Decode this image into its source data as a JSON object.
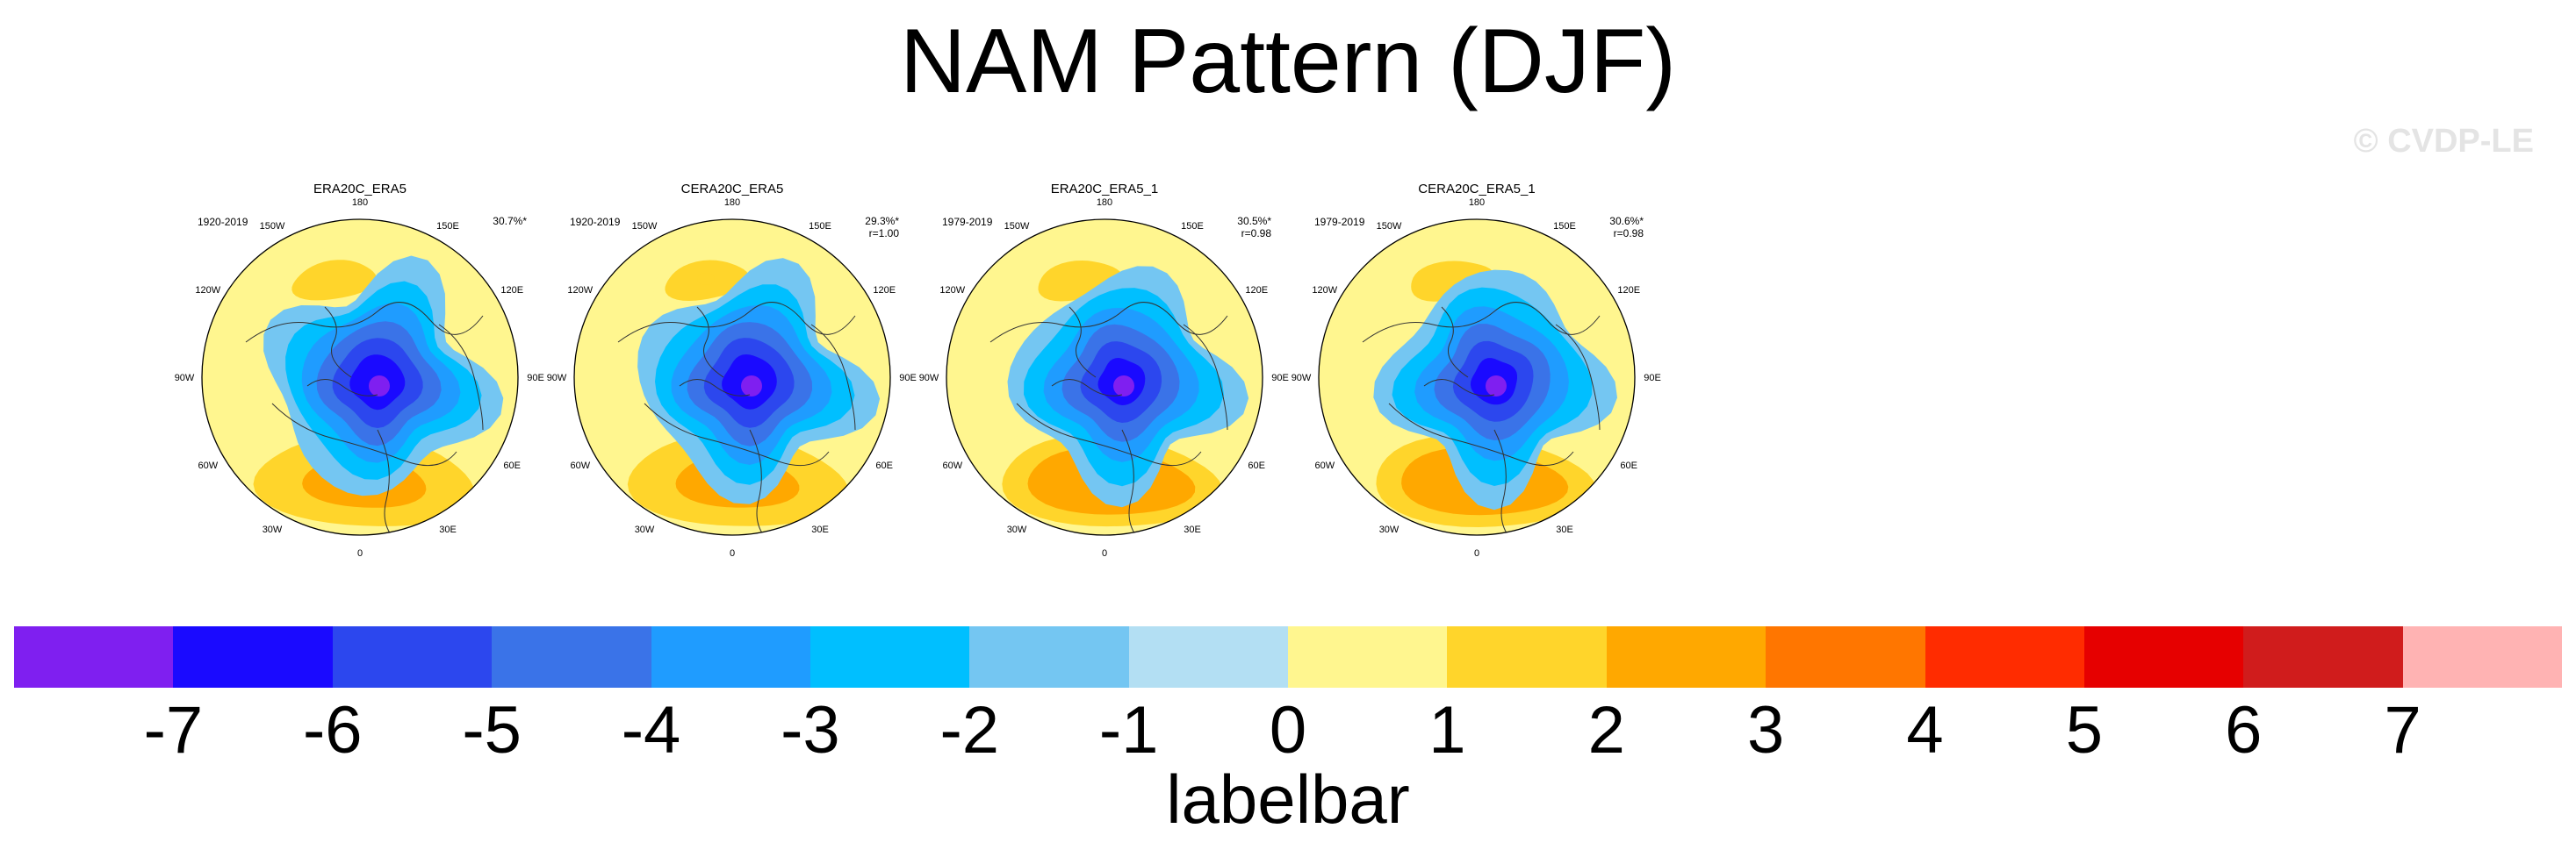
{
  "title": "NAM Pattern (DJF)",
  "watermark": "© CVDP-LE",
  "panels": [
    {
      "title": "ERA20C_ERA5",
      "period": "1920-2019",
      "stat": "30.7%*",
      "corr": ""
    },
    {
      "title": "CERA20C_ERA5",
      "period": "1920-2019",
      "stat": "29.3%*",
      "corr": "r=1.00"
    },
    {
      "title": "ERA20C_ERA5_1",
      "period": "1979-2019",
      "stat": "30.5%*",
      "corr": "r=0.98"
    },
    {
      "title": "CERA20C_ERA5_1",
      "period": "1979-2019",
      "stat": "30.6%*",
      "corr": "r=0.98"
    }
  ],
  "lon_labels": {
    "l0": "0",
    "l30e": "30E",
    "l60e": "60E",
    "l90e": "90E",
    "l120e": "120E",
    "l150e": "150E",
    "l180": "180",
    "l150w": "150W",
    "l120w": "120W",
    "l90w": "90W",
    "l60w": "60W",
    "l30w": "30W"
  },
  "chart_data": {
    "type": "heatmap",
    "title": "NAM Pattern (DJF)",
    "projection": "polar stereographic, Northern Hemisphere",
    "colorbar": {
      "label": "labelbar",
      "ticks": [
        "-7",
        "-6",
        "-5",
        "-4",
        "-3",
        "-2",
        "-1",
        "0",
        "1",
        "2",
        "3",
        "4",
        "5",
        "6",
        "7"
      ],
      "levels": [
        -7,
        -6,
        -5,
        -4,
        -3,
        -2,
        -1,
        0,
        1,
        2,
        3,
        4,
        5,
        6,
        7
      ],
      "colors": [
        "#7f1ff0",
        "#1a0aff",
        "#2c47ee",
        "#3a73e8",
        "#1f9cff",
        "#00bfff",
        "#74c6f2",
        "#b3dff3",
        "#fff68f",
        "#ffd52b",
        "#ffa800",
        "#ff7600",
        "#ff2c00",
        "#e60000",
        "#d01c1c",
        "#ffb3b3"
      ]
    },
    "panels": [
      {
        "name": "ERA20C_ERA5",
        "period": "1920-2019",
        "explained_variance_pct": 30.7,
        "significant": true,
        "pattern_corr": null
      },
      {
        "name": "CERA20C_ERA5",
        "period": "1920-2019",
        "explained_variance_pct": 29.3,
        "significant": true,
        "pattern_corr": 1.0
      },
      {
        "name": "ERA20C_ERA5_1",
        "period": "1979-2019",
        "explained_variance_pct": 30.5,
        "significant": true,
        "pattern_corr": 0.98
      },
      {
        "name": "CERA20C_ERA5_1",
        "period": "1979-2019",
        "explained_variance_pct": 30.6,
        "significant": true,
        "pattern_corr": 0.98
      }
    ]
  }
}
